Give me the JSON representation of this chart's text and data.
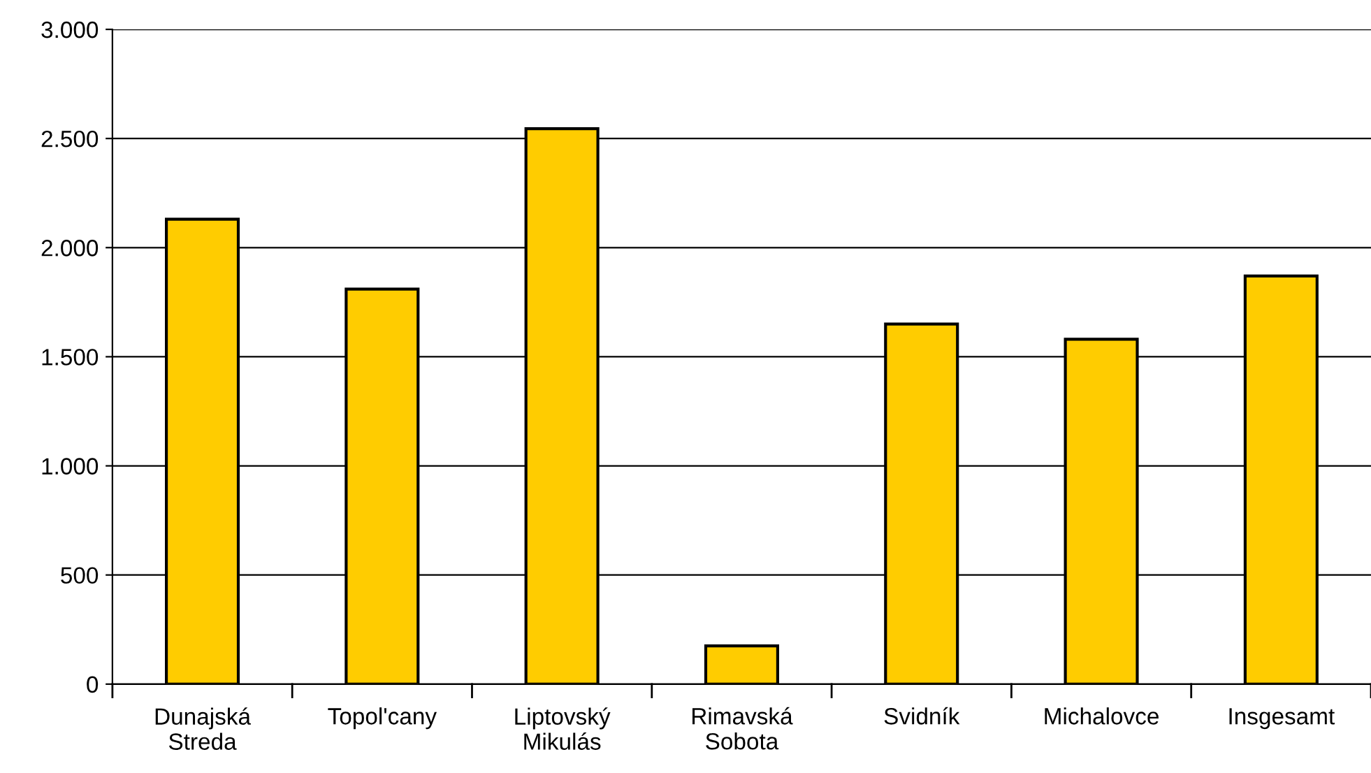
{
  "chart_data": {
    "type": "bar",
    "categories": [
      "Dunajská\nStreda",
      "Topol'cany",
      "Liptovský\nMikulás",
      "Rimavská\nSobota",
      "Svidník",
      "Michalovce",
      "Insgesamt"
    ],
    "values": [
      2130,
      1810,
      2545,
      175,
      1650,
      1580,
      1870
    ],
    "color": "#ffcc00",
    "ylim": [
      0,
      3000
    ],
    "yticks": [
      {
        "value": 0,
        "label": "0"
      },
      {
        "value": 500,
        "label": "500"
      },
      {
        "value": 1000,
        "label": "1.000"
      },
      {
        "value": 1500,
        "label": "1.500"
      },
      {
        "value": 2000,
        "label": "2.000"
      },
      {
        "value": 2500,
        "label": "2.500"
      },
      {
        "value": 3000,
        "label": "3.000"
      }
    ],
    "grid": "y",
    "legend": false
  }
}
